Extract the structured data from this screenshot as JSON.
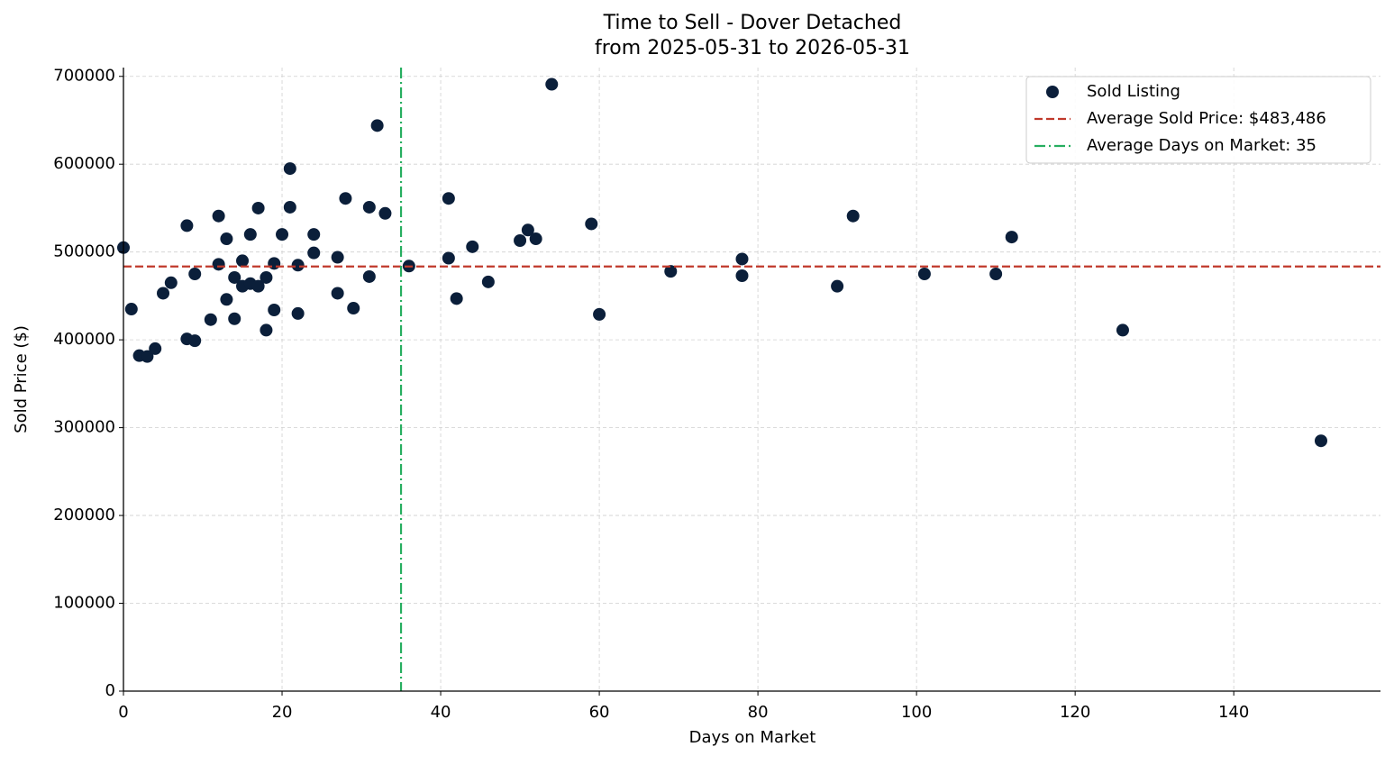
{
  "chart_data": {
    "type": "scatter",
    "title": "Time to Sell - Dover Detached",
    "subtitle": "from 2025-05-31 to 2026-05-31",
    "x_label": "Days on Market",
    "y_label": "Sold Price ($)",
    "xlim": [
      0,
      158.5
    ],
    "ylim": [
      0,
      710000
    ],
    "xticks": [
      0,
      20,
      40,
      60,
      80,
      100,
      120,
      140
    ],
    "yticks": [
      0,
      100000,
      200000,
      300000,
      400000,
      500000,
      600000,
      700000
    ],
    "grid": true,
    "legend": "upper right",
    "series": [
      {
        "name": "Sold Listing",
        "color": "#0b1f3a",
        "x": [
          0,
          1,
          2,
          3,
          4,
          5,
          6,
          8,
          8,
          9,
          9,
          11,
          12,
          12,
          13,
          13,
          14,
          14,
          15,
          15,
          16,
          16,
          17,
          17,
          18,
          18,
          19,
          19,
          20,
          21,
          21,
          22,
          22,
          24,
          24,
          27,
          27,
          28,
          29,
          31,
          31,
          32,
          33,
          36,
          41,
          41,
          42,
          44,
          46,
          50,
          51,
          52,
          54,
          59,
          60,
          69,
          78,
          78,
          90,
          92,
          101,
          110,
          112,
          126,
          151
        ],
        "values": [
          505000,
          435000,
          382000,
          381000,
          390000,
          453000,
          465000,
          530000,
          401000,
          475000,
          399000,
          423000,
          541000,
          486000,
          515000,
          446000,
          471000,
          424000,
          490000,
          461000,
          520000,
          464000,
          550000,
          461000,
          471000,
          411000,
          487000,
          434000,
          520000,
          595000,
          551000,
          485000,
          430000,
          520000,
          499000,
          494000,
          453000,
          561000,
          436000,
          551000,
          472000,
          644000,
          544000,
          484000,
          561000,
          493000,
          447000,
          506000,
          466000,
          513000,
          525000,
          515000,
          691000,
          532000,
          429000,
          478000,
          492000,
          473000,
          461000,
          541000,
          475000,
          475000,
          517000,
          411000,
          285000
        ]
      }
    ],
    "hline": {
      "value": 483486,
      "label": "Average Sold Price: $483,486",
      "color": "#c0392b"
    },
    "vline": {
      "value": 35,
      "label": "Average Days on Market: 35",
      "color": "#27ae60"
    }
  }
}
